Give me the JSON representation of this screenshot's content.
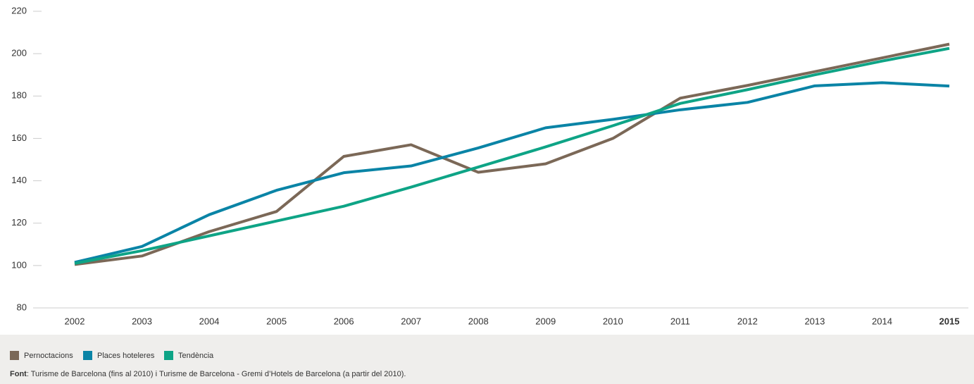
{
  "chart_data": {
    "type": "line",
    "categories": [
      "2002",
      "2003",
      "2004",
      "2005",
      "2006",
      "2007",
      "2008",
      "2009",
      "2010",
      "2011",
      "2012",
      "2013",
      "2014",
      "2015"
    ],
    "bold_last_category": true,
    "series": [
      {
        "name": "Pernoctacions",
        "color": "#7b6857",
        "values": [
          100.5,
          104.5,
          116,
          125.5,
          151.5,
          157,
          144,
          148,
          160,
          179,
          185,
          191.5,
          198,
          204.5
        ]
      },
      {
        "name": "Places hoteleres",
        "color": "#0a84a6",
        "values": [
          101.5,
          109,
          124,
          135.5,
          143.8,
          147,
          155.5,
          165,
          169,
          173.5,
          177,
          184.8,
          186.3,
          184.7
        ]
      },
      {
        "name": "Tendència",
        "color": "#0ea486",
        "values": [
          101,
          107,
          114,
          121,
          128,
          137,
          146.5,
          156,
          166,
          176.5,
          183,
          190,
          196.5,
          202.5
        ]
      }
    ],
    "ylim": [
      80,
      220
    ],
    "yticks": [
      80,
      100,
      120,
      140,
      160,
      180,
      200,
      220
    ],
    "grid": false,
    "source_label": "Font",
    "source": ": Turisme de Barcelona (fins al 2010) i Turisme de Barcelona - Gremi d’Hotels de Barcelona (a partir del 2010)."
  }
}
